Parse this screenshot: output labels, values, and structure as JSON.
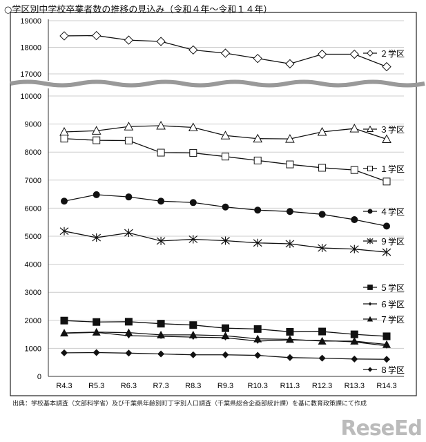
{
  "chart_data": {
    "type": "line",
    "title": "○学区別中学校卒業者数の推移の見込み（令和４年～令和１４年）",
    "categories": [
      "R4.3",
      "R5.3",
      "R6.3",
      "R7.3",
      "R8.3",
      "R9.3",
      "R10.3",
      "R11.3",
      "R12.3",
      "R13.3",
      "R14.3"
    ],
    "y_axis_break": true,
    "upper_ylim": [
      17000,
      19000
    ],
    "upper_ticks": [
      "17000",
      "18000",
      "19000"
    ],
    "lower_ylim": [
      0,
      10000
    ],
    "lower_ticks": [
      "0",
      "1000",
      "2000",
      "3000",
      "4000",
      "5000",
      "6000",
      "7000",
      "8000",
      "9000",
      "10000"
    ],
    "grid": true,
    "legend": "right, next to line ends",
    "series": [
      {
        "name": "２学区",
        "marker": "open-diamond",
        "panel": "upper",
        "values": [
          18430,
          18440,
          18270,
          18220,
          17900,
          17780,
          17580,
          17380,
          17740,
          17740,
          17270
        ]
      },
      {
        "name": "３学区",
        "marker": "open-triangle",
        "panel": "lower",
        "values": [
          8720,
          8760,
          8910,
          8940,
          8880,
          8590,
          8480,
          8470,
          8720,
          8840,
          8460
        ]
      },
      {
        "name": "１学区",
        "marker": "open-square",
        "panel": "lower",
        "values": [
          8480,
          8420,
          8410,
          7980,
          7970,
          7840,
          7700,
          7560,
          7440,
          7360,
          6950
        ]
      },
      {
        "name": "４学区",
        "marker": "filled-circle",
        "panel": "lower",
        "values": [
          6250,
          6480,
          6400,
          6250,
          6200,
          6040,
          5930,
          5880,
          5780,
          5590,
          5360
        ]
      },
      {
        "name": "９学区",
        "marker": "asterisk",
        "panel": "lower",
        "values": [
          5180,
          4950,
          5120,
          4830,
          4890,
          4840,
          4760,
          4730,
          4580,
          4540,
          4430
        ]
      },
      {
        "name": "５学区",
        "marker": "filled-square",
        "panel": "lower",
        "values": [
          1990,
          1940,
          1950,
          1880,
          1830,
          1720,
          1690,
          1590,
          1600,
          1500,
          1430
        ]
      },
      {
        "name": "６学区",
        "marker": "small-diamond",
        "panel": "lower",
        "values": [
          1540,
          1570,
          1450,
          1430,
          1400,
          1380,
          1260,
          1300,
          1280,
          1230,
          1090
        ]
      },
      {
        "name": "７学区",
        "marker": "filled-triangle",
        "panel": "lower",
        "values": [
          1550,
          1580,
          1560,
          1480,
          1480,
          1450,
          1340,
          1320,
          1260,
          1260,
          1140
        ]
      },
      {
        "name": "８学区",
        "marker": "filled-diamond",
        "panel": "lower",
        "values": [
          840,
          850,
          830,
          800,
          770,
          770,
          750,
          670,
          650,
          620,
          610
        ]
      }
    ]
  },
  "source": "出典：学校基本調査（文部科学省）及び千葉県年齢別町丁字別人口調査（千葉県総合企画部統計課）を基に教育政策課にて作成",
  "logo": "ReseEd"
}
